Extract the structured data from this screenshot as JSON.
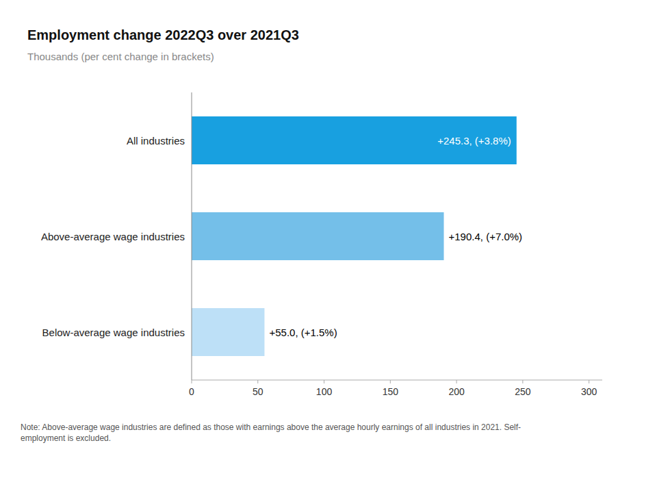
{
  "chart_data": {
    "type": "bar",
    "orientation": "horizontal",
    "title": "Employment change 2022Q3 over 2021Q3",
    "subtitle": "Thousands  (per cent change in brackets)",
    "note": "Note: Above-average wage industries are defined as those with earnings above the average hourly earnings of all industries in 2021. Self-\nemployment is excluded.",
    "categories": [
      "Below-average wage industries",
      "Above-average wage industries",
      "All industries"
    ],
    "values": [
      55.0,
      190.4,
      245.3
    ],
    "value_labels": [
      "+55.0, (+1.5%)",
      "+190.4, (+7.0%)",
      "+245.3, (+3.8%)"
    ],
    "colors": [
      "#bde0f7",
      "#74bfe9",
      "#18a0e0"
    ],
    "xlim": [
      0,
      310
    ],
    "xticks": [
      0,
      50,
      100,
      150,
      200,
      250,
      300
    ],
    "grid": false,
    "data_labels": true
  }
}
